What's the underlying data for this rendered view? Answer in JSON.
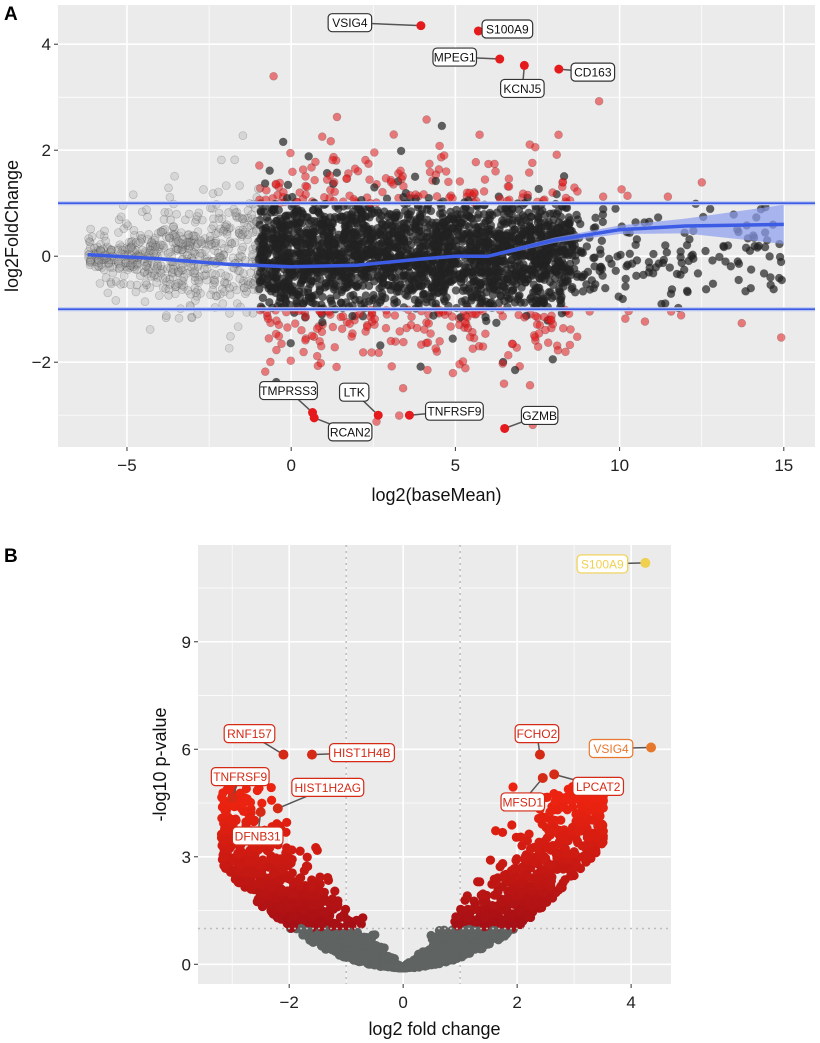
{
  "chart_data": [
    {
      "panel_label": "A",
      "type": "scatter",
      "title": "",
      "xlabel": "log2(baseMean)",
      "ylabel": "log2FoldChange",
      "xlim": [
        -7.1,
        15.95
      ],
      "ylim": [
        -3.6,
        4.74
      ],
      "xticks": [
        -5,
        0,
        5,
        10,
        15
      ],
      "yticks": [
        -2,
        0,
        2,
        4
      ],
      "grid": true,
      "hlines": [
        -1,
        1
      ],
      "colors": {
        "significant": "#e41a1c",
        "nonsignificant": "#222222",
        "low_count": "#999999",
        "trend": "#3d5ce6",
        "band": "#8c9cf0",
        "label_border": "#333333"
      },
      "trend_line": {
        "x": [
          -6.2,
          -4,
          -2,
          0,
          2,
          4,
          5,
          6,
          8,
          10,
          12,
          15
        ],
        "y": [
          0.03,
          -0.05,
          -0.15,
          -0.2,
          -0.17,
          -0.05,
          0.0,
          0.0,
          0.3,
          0.5,
          0.57,
          0.6
        ],
        "band_halfwidth": [
          0.03,
          0.02,
          0.02,
          0.02,
          0.02,
          0.02,
          0.02,
          0.03,
          0.05,
          0.08,
          0.14,
          0.37
        ]
      },
      "point_cloud": {
        "n": 3200,
        "x_range": [
          -6.2,
          15
        ],
        "note_threshold": 1
      },
      "labeled_points": [
        {
          "gene": "VSIG4",
          "x": 3.95,
          "y": 4.35
        },
        {
          "gene": "S100A9",
          "x": 5.7,
          "y": 4.25
        },
        {
          "gene": "MPEG1",
          "x": 6.35,
          "y": 3.72
        },
        {
          "gene": "KCNJ5",
          "x": 7.1,
          "y": 3.6
        },
        {
          "gene": "CD163",
          "x": 8.15,
          "y": 3.53
        },
        {
          "gene": "TMPRSS3",
          "x": 0.65,
          "y": -2.95
        },
        {
          "gene": "RCAN2",
          "x": 0.7,
          "y": -3.05
        },
        {
          "gene": "LTK",
          "x": 2.65,
          "y": -3.0
        },
        {
          "gene": "TNFRSF9",
          "x": 3.6,
          "y": -3.0
        },
        {
          "gene": "GZMB",
          "x": 6.5,
          "y": -3.25
        }
      ]
    },
    {
      "panel_label": "B",
      "type": "scatter",
      "title": "",
      "xlabel": "log2 fold change",
      "ylabel": "-log10 p-value",
      "xlim": [
        -3.6,
        4.7
      ],
      "ylim": [
        -0.55,
        11.7
      ],
      "xticks": [
        -2,
        0,
        2,
        4
      ],
      "yticks": [
        0,
        3,
        6,
        9
      ],
      "grid": true,
      "vlines": [
        -1,
        1
      ],
      "hlines": [
        1
      ],
      "colors": {
        "significant_low": "#a50f15",
        "significant_high": "#e02010",
        "nonsignificant": "#5f6362",
        "top1": "#f0d050",
        "top2": "#e8772e"
      },
      "point_cloud": {
        "n": 2200,
        "x_range": [
          -3.2,
          3.75
        ]
      },
      "labeled_points": [
        {
          "gene": "S100A9",
          "x": 4.25,
          "y": 11.2,
          "color": "#f0d050"
        },
        {
          "gene": "VSIG4",
          "x": 4.35,
          "y": 6.05,
          "color": "#e8772e"
        },
        {
          "gene": "FCHO2",
          "x": 2.4,
          "y": 5.85,
          "color": "#d42a16"
        },
        {
          "gene": "LPCAT2",
          "x": 2.65,
          "y": 5.3,
          "color": "#d42a16"
        },
        {
          "gene": "MFSD1",
          "x": 2.45,
          "y": 5.2,
          "color": "#d42a16"
        },
        {
          "gene": "RNF157",
          "x": -2.1,
          "y": 5.85,
          "color": "#d42a16"
        },
        {
          "gene": "HIST1H4B",
          "x": -1.6,
          "y": 5.85,
          "color": "#d42a16"
        },
        {
          "gene": "TNFRSF9",
          "x": -3.0,
          "y": 4.65,
          "color": "#d42a16"
        },
        {
          "gene": "HIST1H2AG",
          "x": -2.2,
          "y": 4.35,
          "color": "#d42a16"
        },
        {
          "gene": "DFNB31",
          "x": -2.5,
          "y": 4.25,
          "color": "#d42a16"
        }
      ]
    }
  ]
}
